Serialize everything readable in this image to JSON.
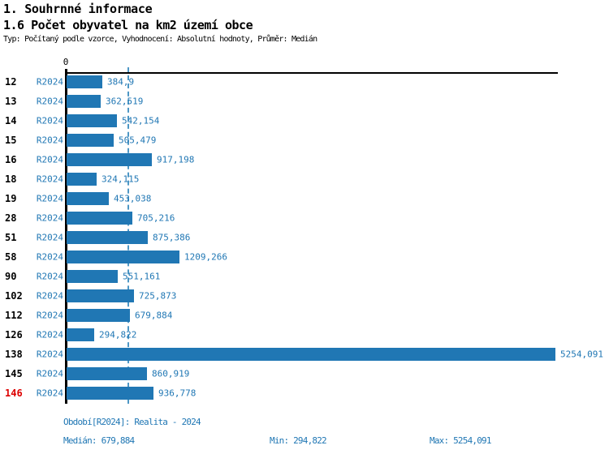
{
  "header": {
    "section_title": "1. Souhrnné informace",
    "chart_title": "1.6 Počet obyvatel na km2 území obce",
    "subtitle": "Typ: Počítaný podle vzorce, Vyhodnocení: Absolutní hodnoty, Průměr: Medián"
  },
  "chart_data": {
    "type": "bar",
    "orientation": "horizontal",
    "title": "1.6 Počet obyvatel na km2 území obce",
    "series_label": "R2024",
    "categories": [
      "12",
      "13",
      "14",
      "15",
      "16",
      "18",
      "19",
      "28",
      "51",
      "58",
      "90",
      "102",
      "112",
      "126",
      "138",
      "145",
      "146"
    ],
    "rows": [
      {
        "id": "12",
        "period": "R2024",
        "value": 384.9,
        "label": "384,9"
      },
      {
        "id": "13",
        "period": "R2024",
        "value": 362.519,
        "label": "362,519"
      },
      {
        "id": "14",
        "period": "R2024",
        "value": 542.154,
        "label": "542,154"
      },
      {
        "id": "15",
        "period": "R2024",
        "value": 505.479,
        "label": "505,479"
      },
      {
        "id": "16",
        "period": "R2024",
        "value": 917.198,
        "label": "917,198"
      },
      {
        "id": "18",
        "period": "R2024",
        "value": 324.115,
        "label": "324,115"
      },
      {
        "id": "19",
        "period": "R2024",
        "value": 453.038,
        "label": "453,038"
      },
      {
        "id": "28",
        "period": "R2024",
        "value": 705.216,
        "label": "705,216"
      },
      {
        "id": "51",
        "period": "R2024",
        "value": 875.386,
        "label": "875,386"
      },
      {
        "id": "58",
        "period": "R2024",
        "value": 1209.266,
        "label": "1209,266"
      },
      {
        "id": "90",
        "period": "R2024",
        "value": 551.161,
        "label": "551,161"
      },
      {
        "id": "102",
        "period": "R2024",
        "value": 725.873,
        "label": "725,873"
      },
      {
        "id": "112",
        "period": "R2024",
        "value": 679.884,
        "label": "679,884"
      },
      {
        "id": "126",
        "period": "R2024",
        "value": 294.822,
        "label": "294,822"
      },
      {
        "id": "138",
        "period": "R2024",
        "value": 5254.091,
        "label": "5254,091"
      },
      {
        "id": "145",
        "period": "R2024",
        "value": 860.919,
        "label": "860,919"
      },
      {
        "id": "146",
        "period": "R2024",
        "value": 936.778,
        "label": "936,778",
        "highlight": true
      }
    ],
    "axis": {
      "x_zero_label": "0",
      "xmax": 5254.091,
      "grid": false
    },
    "median": 679.884,
    "median_label": "679,884",
    "min": 294.822,
    "max": 5254.091,
    "highlight_row_id": "146",
    "colors": {
      "bar": "#2077b4",
      "value_text": "#2077b4",
      "median_line": "#4d97c5",
      "highlight_text": "#dd0000"
    }
  },
  "footer": {
    "period": "Období[R2024]: Realita - 2024",
    "median": "Medián: 679,884",
    "min": "Min: 294,822",
    "max": "Max: 5254,091"
  }
}
